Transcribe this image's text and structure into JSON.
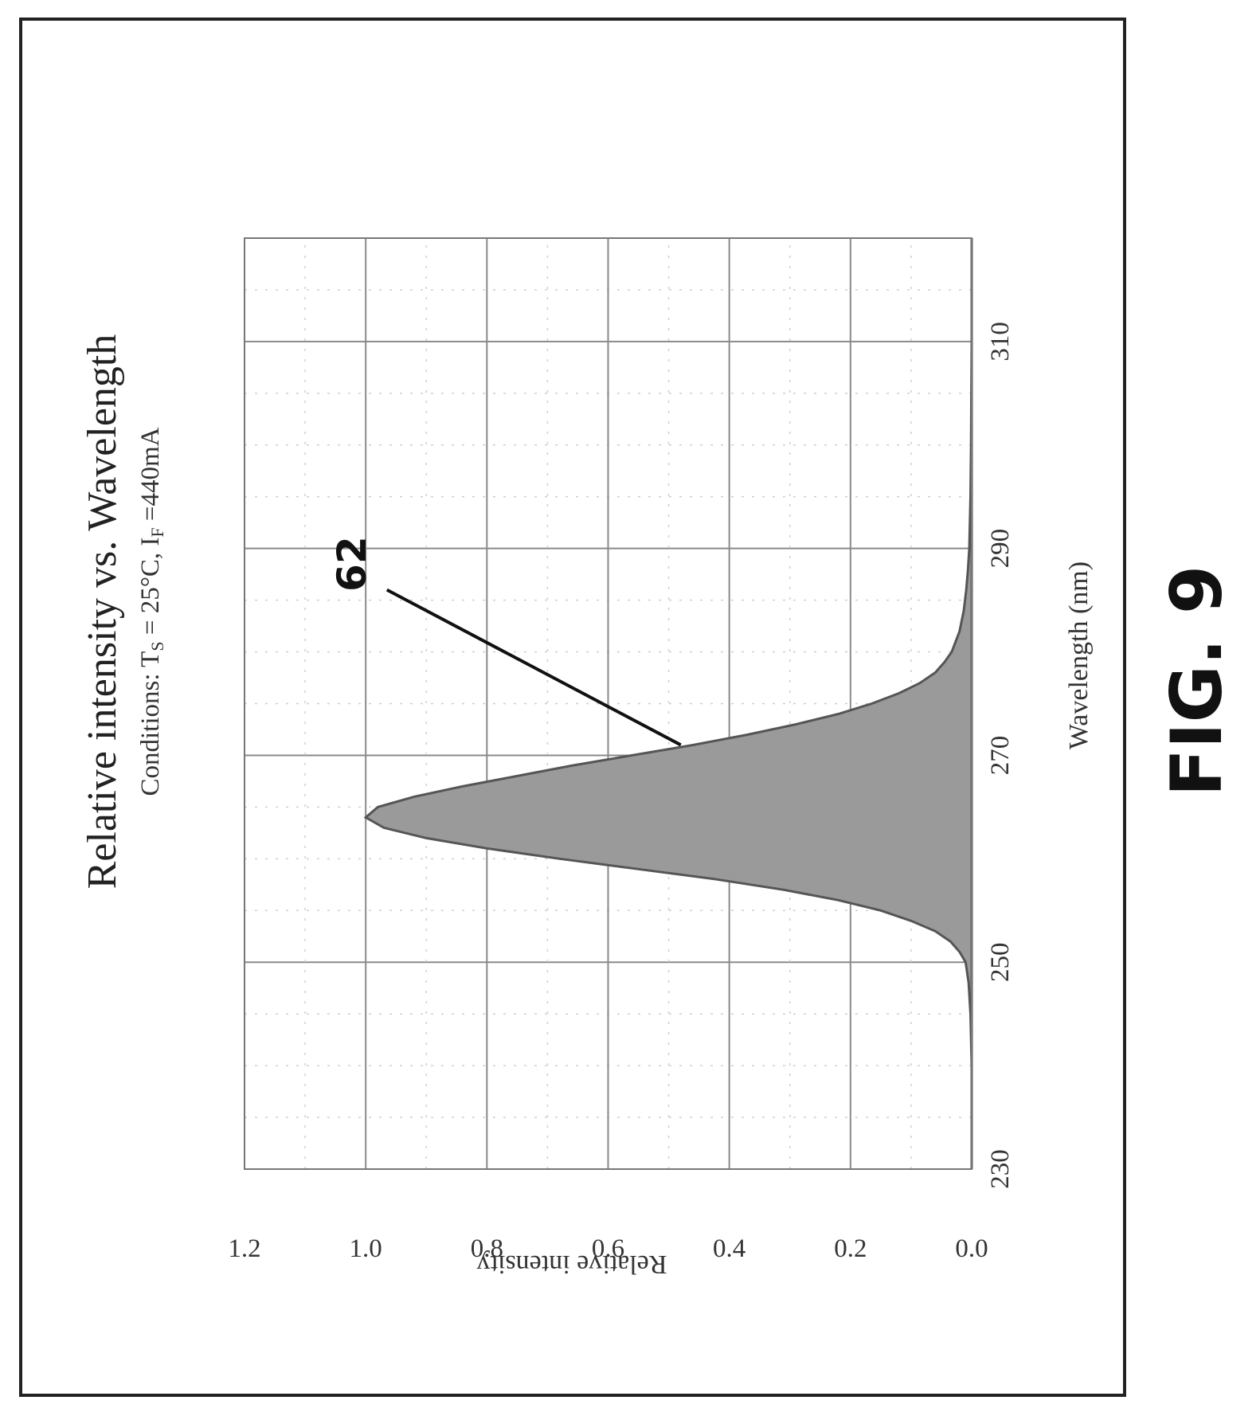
{
  "figure_label": "FIG. 9",
  "chart_data": {
    "type": "area",
    "title": "Relative intensity vs. Wavelength",
    "subtitle": {
      "prefix": "Conditions: T",
      "ts_sub": "S",
      "middle": " = 25°C, I",
      "if_sub": "F",
      "suffix": " =440mA"
    },
    "xlabel": "Wavelength (nm)",
    "ylabel": "Relative intensity",
    "xlim": [
      230,
      320
    ],
    "ylim": [
      0,
      1.2
    ],
    "x_ticks": [
      "230",
      "250",
      "270",
      "290",
      "310"
    ],
    "y_ticks": [
      "0.0",
      "0.2",
      "0.4",
      "0.6",
      "0.8",
      "1.0",
      "1.2"
    ],
    "grid": true,
    "legend": "none",
    "callout": "62",
    "series": [
      {
        "x": [
          230,
          240,
          245,
          248,
          250,
          251,
          252,
          253,
          254,
          255,
          256,
          257,
          258,
          259,
          260,
          261,
          262,
          263,
          264,
          265,
          266,
          267,
          268,
          269,
          270,
          271,
          272,
          273,
          274,
          275,
          276,
          277,
          278,
          279,
          280,
          282,
          284,
          286,
          288,
          290,
          295,
          300,
          310,
          320
        ],
        "y": [
          0.0,
          0.0,
          0.002,
          0.005,
          0.01,
          0.02,
          0.035,
          0.06,
          0.1,
          0.15,
          0.22,
          0.31,
          0.42,
          0.55,
          0.68,
          0.8,
          0.9,
          0.97,
          1.0,
          0.98,
          0.92,
          0.84,
          0.75,
          0.66,
          0.56,
          0.46,
          0.37,
          0.29,
          0.22,
          0.165,
          0.12,
          0.085,
          0.06,
          0.045,
          0.033,
          0.02,
          0.013,
          0.009,
          0.006,
          0.004,
          0.002,
          0.001,
          0.0,
          0.0
        ]
      }
    ]
  }
}
